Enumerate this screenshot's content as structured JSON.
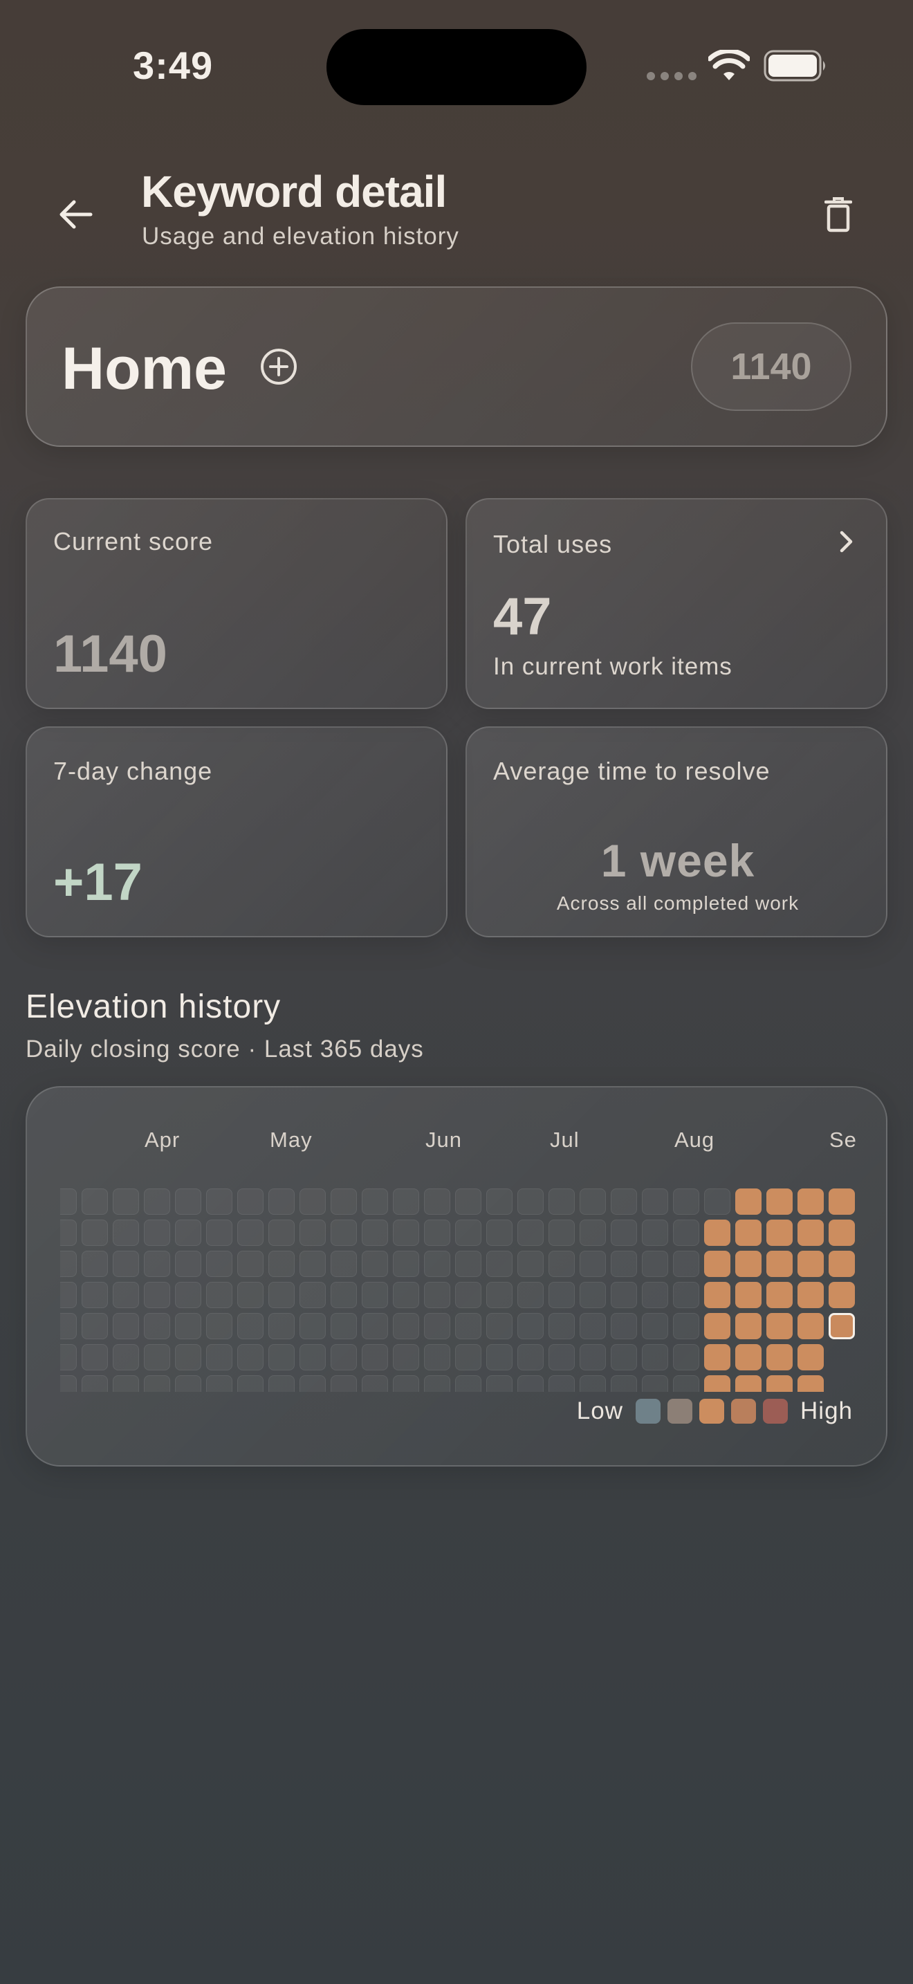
{
  "status_bar": {
    "time": "3:49"
  },
  "header": {
    "title": "Keyword detail",
    "subtitle": "Usage and elevation history"
  },
  "keyword": {
    "name": "Home",
    "score": "1140"
  },
  "stats": {
    "current_score": {
      "label": "Current score",
      "value": "1140"
    },
    "total_uses": {
      "label": "Total uses",
      "value": "47",
      "sub": "In current work items"
    },
    "change_7d": {
      "label": "7-day change",
      "value": "+17"
    },
    "avg_resolve": {
      "label": "Average time to resolve",
      "value": "1 week",
      "sub": "Across all completed work"
    }
  },
  "elevation": {
    "title": "Elevation history",
    "subtitle": "Daily closing score · Last 365 days",
    "months": [
      "Apr",
      "May",
      "Jun",
      "Jul",
      "Aug",
      "Se"
    ],
    "legend_low": "Low",
    "legend_high": "High",
    "legend_colors": [
      "#6f8189",
      "#8c7f76",
      "#cc8d5f",
      "#b97f5c",
      "#9c5d55"
    ],
    "filled_color": "#cc8d5f",
    "weeks_visible": 26,
    "filled_weeks_from": 21,
    "current_week_days_filled": 5
  },
  "colors": {
    "accent": "#cc8d5f",
    "positive": "#c2d6c6"
  }
}
